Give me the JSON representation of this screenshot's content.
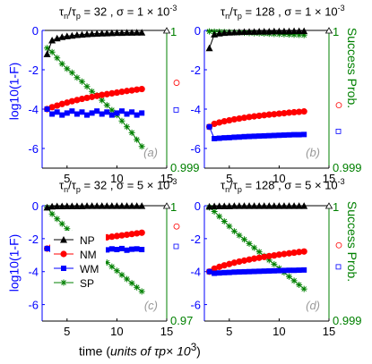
{
  "figure": {
    "left_ylabel": "log10(1-F)",
    "right_ylabel": "Success Prob.",
    "xlabel_prefix": "time (",
    "xlabel_italic": "units of τp× 10",
    "xlabel_exp": "3",
    "xlabel_suffix": ")"
  },
  "colors": {
    "NP": "#000000",
    "NM": "#ff0000",
    "WM": "#0000ff",
    "SP": "#008000",
    "left_axis": "#0000ff",
    "right_axis": "#008000",
    "panel_letter": "#999999"
  },
  "chart_data": [
    {
      "type": "line",
      "panel": "(a)",
      "title": {
        "ratio": "32",
        "sigma_mantissa": "1",
        "sigma_exp": "-3"
      },
      "x": [
        3.0,
        3.5,
        4.0,
        4.5,
        5.0,
        5.5,
        6.0,
        6.5,
        7.0,
        7.5,
        8.0,
        8.5,
        9.0,
        9.5,
        10.0,
        10.5,
        11.0,
        11.5,
        12.0,
        12.5
      ],
      "xlim": [
        2.5,
        15
      ],
      "ylim_left": [
        -7,
        0
      ],
      "yticks_left": [
        "0",
        "-2",
        "-4",
        "-6"
      ],
      "xticks": [
        "5",
        "10",
        "15"
      ],
      "ylim_right_labels": [
        "1",
        "0.999"
      ],
      "series": [
        {
          "name": "NP",
          "values": [
            -1.2,
            -0.5,
            -0.4,
            -0.33,
            -0.29,
            -0.26,
            -0.23,
            -0.21,
            -0.19,
            -0.17,
            -0.16,
            -0.15,
            -0.14,
            -0.13,
            -0.12,
            -0.12,
            -0.11,
            -0.11,
            -0.1,
            -0.1
          ]
        },
        {
          "name": "NM",
          "values": [
            -4.0,
            -3.9,
            -3.82,
            -3.74,
            -3.67,
            -3.6,
            -3.54,
            -3.48,
            -3.43,
            -3.38,
            -3.33,
            -3.28,
            -3.24,
            -3.2,
            -3.16,
            -3.12,
            -3.08,
            -3.05,
            -3.01,
            -2.98
          ]
        },
        {
          "name": "WM",
          "values": [
            -4.0,
            -4.25,
            -4.15,
            -4.3,
            -4.2,
            -4.1,
            -4.25,
            -4.15,
            -4.3,
            -4.2,
            -4.1,
            -4.25,
            -4.15,
            -4.3,
            -4.2,
            -4.1,
            -4.25,
            -4.15,
            -4.3,
            -4.2
          ]
        },
        {
          "name": "SP",
          "values": [
            -0.9,
            -1.1,
            -1.4,
            -1.7,
            -1.95,
            -2.15,
            -2.4,
            -2.6,
            -2.85,
            -3.1,
            -3.3,
            -3.55,
            -3.8,
            -4.05,
            -4.3,
            -4.6,
            -4.9,
            -5.2,
            -5.55,
            -5.9
          ]
        }
      ]
    },
    {
      "type": "line",
      "panel": "(b)",
      "title": {
        "ratio": "128",
        "sigma_mantissa": "1",
        "sigma_exp": "-3"
      },
      "x": [
        3.0,
        3.5,
        4.0,
        4.5,
        5.0,
        5.5,
        6.0,
        6.5,
        7.0,
        7.5,
        8.0,
        8.5,
        9.0,
        9.5,
        10.0,
        10.5,
        11.0,
        11.5,
        12.0,
        12.5
      ],
      "xlim": [
        2.5,
        15
      ],
      "ylim_left": [
        -7,
        0
      ],
      "yticks_left": [
        "0",
        "-2",
        "-4",
        "-6"
      ],
      "xticks": [
        "5",
        "10",
        "15"
      ],
      "ylim_right_labels": [
        "1",
        "0.999"
      ],
      "series": [
        {
          "name": "NP",
          "values": [
            -0.9,
            -0.2,
            -0.15,
            -0.12,
            -0.1,
            -0.09,
            -0.08,
            -0.07,
            -0.06,
            -0.06,
            -0.05,
            -0.05,
            -0.05,
            -0.04,
            -0.04,
            -0.04,
            -0.04,
            -0.03,
            -0.03,
            -0.03
          ]
        },
        {
          "name": "NM",
          "values": [
            -4.9,
            -4.75,
            -4.68,
            -4.62,
            -4.57,
            -4.52,
            -4.48,
            -4.44,
            -4.4,
            -4.37,
            -4.34,
            -4.31,
            -4.28,
            -4.26,
            -4.23,
            -4.21,
            -4.18,
            -4.16,
            -4.14,
            -4.12
          ]
        },
        {
          "name": "WM",
          "values": [
            -4.9,
            -5.5,
            -5.48,
            -5.46,
            -5.45,
            -5.43,
            -5.42,
            -5.4,
            -5.39,
            -5.38,
            -5.37,
            -5.36,
            -5.35,
            -5.34,
            -5.33,
            -5.32,
            -5.31,
            -5.3,
            -5.3,
            -5.29
          ]
        },
        {
          "name": "SP",
          "values": [
            -0.05,
            -0.06,
            -0.07,
            -0.08,
            -0.09,
            -0.1,
            -0.11,
            -0.12,
            -0.13,
            -0.14,
            -0.15,
            -0.16,
            -0.17,
            -0.18,
            -0.19,
            -0.2,
            -0.21,
            -0.22,
            -0.23,
            -0.24
          ]
        }
      ]
    },
    {
      "type": "line",
      "panel": "(c)",
      "title": {
        "ratio": "32",
        "sigma_mantissa": "5",
        "sigma_exp": "-3"
      },
      "x": [
        3.0,
        3.5,
        4.0,
        4.5,
        5.0,
        5.5,
        6.0,
        6.5,
        7.0,
        7.5,
        8.0,
        8.5,
        9.0,
        9.5,
        10.0,
        10.5,
        11.0,
        11.5,
        12.0,
        12.5
      ],
      "xlim": [
        2.5,
        15
      ],
      "ylim_left": [
        -7,
        0
      ],
      "yticks_left": [
        "0",
        "-2",
        "-4",
        "-6"
      ],
      "xticks": [
        "5",
        "10",
        "15"
      ],
      "ylim_right_labels": [
        "1",
        "0.97"
      ],
      "series": [
        {
          "name": "NP",
          "values": [
            -0.1,
            -0.04,
            -0.03,
            -0.03,
            -0.02,
            -0.02,
            -0.02,
            -0.02,
            -0.01,
            -0.01,
            -0.01,
            -0.01,
            -0.01,
            -0.01,
            -0.01,
            -0.01,
            -0.01,
            -0.01,
            -0.01,
            -0.01
          ]
        },
        {
          "name": "NM",
          "values": [
            -2.6,
            -2.5,
            -2.43,
            -2.37,
            -2.31,
            -2.25,
            -2.2,
            -2.15,
            -2.1,
            -2.05,
            -2.0,
            -1.96,
            -1.92,
            -1.88,
            -1.84,
            -1.8,
            -1.76,
            -1.72,
            -1.68,
            -1.64
          ]
        },
        {
          "name": "WM",
          "values": [
            -2.6,
            -2.65,
            -2.6,
            -2.68,
            -2.62,
            -2.7,
            -2.6,
            -2.66,
            -2.62,
            -2.7,
            -2.64,
            -2.6,
            -2.68,
            -2.62,
            -2.66,
            -2.6,
            -2.7,
            -2.64,
            -2.62,
            -2.66
          ]
        },
        {
          "name": "SP",
          "values": [
            -0.1,
            -0.5,
            -0.8,
            -1.1,
            -1.4,
            -1.7,
            -1.95,
            -2.2,
            -2.45,
            -2.7,
            -2.95,
            -3.2,
            -3.45,
            -3.7,
            -3.95,
            -4.2,
            -4.45,
            -4.7,
            -4.95,
            -5.2
          ]
        }
      ]
    },
    {
      "type": "line",
      "panel": "(d)",
      "title": {
        "ratio": "128",
        "sigma_mantissa": "5",
        "sigma_exp": "-3"
      },
      "x": [
        3.0,
        3.5,
        4.0,
        4.5,
        5.0,
        5.5,
        6.0,
        6.5,
        7.0,
        7.5,
        8.0,
        8.5,
        9.0,
        9.5,
        10.0,
        10.5,
        11.0,
        11.5,
        12.0,
        12.5
      ],
      "xlim": [
        2.5,
        15
      ],
      "ylim_left": [
        -7,
        0
      ],
      "yticks_left": [
        "0",
        "-2",
        "-4",
        "-6"
      ],
      "xticks": [
        "5",
        "10",
        "15"
      ],
      "ylim_right_labels": [
        "1",
        "0.999"
      ],
      "series": [
        {
          "name": "NP",
          "values": [
            -0.05,
            -0.03,
            -0.02,
            -0.02,
            -0.02,
            -0.01,
            -0.01,
            -0.01,
            -0.01,
            -0.01,
            -0.01,
            -0.01,
            -0.01,
            -0.01,
            -0.01,
            -0.01,
            -0.01,
            -0.01,
            -0.01,
            -0.01
          ]
        },
        {
          "name": "NM",
          "values": [
            -4.0,
            -3.82,
            -3.71,
            -3.62,
            -3.54,
            -3.46,
            -3.39,
            -3.33,
            -3.27,
            -3.21,
            -3.16,
            -3.11,
            -3.06,
            -3.02,
            -2.97,
            -2.93,
            -2.89,
            -2.85,
            -2.81,
            -2.78
          ]
        },
        {
          "name": "WM",
          "values": [
            -4.0,
            -4.1,
            -4.08,
            -4.06,
            -4.05,
            -4.03,
            -4.02,
            -4.01,
            -4.0,
            -3.99,
            -3.98,
            -3.97,
            -3.96,
            -3.95,
            -3.94,
            -3.93,
            -3.92,
            -3.92,
            -3.91,
            -3.9
          ]
        },
        {
          "name": "SP",
          "values": [
            -0.1,
            -0.35,
            -0.65,
            -0.95,
            -1.25,
            -1.55,
            -1.8,
            -2.05,
            -2.3,
            -2.55,
            -2.8,
            -3.05,
            -3.3,
            -3.55,
            -3.8,
            -4.05,
            -4.3,
            -4.55,
            -4.8,
            -5.05
          ]
        }
      ]
    }
  ]
}
